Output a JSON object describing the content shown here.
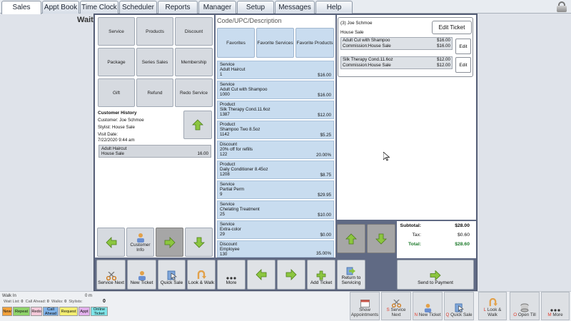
{
  "tabs": [
    {
      "label": "Sales",
      "active": true
    },
    {
      "label": "Appt Book"
    },
    {
      "label": "Time Clock"
    },
    {
      "label": "Scheduler"
    },
    {
      "label": "Reports"
    },
    {
      "label": "Manager"
    },
    {
      "label": "Setup"
    },
    {
      "label": "Messages"
    },
    {
      "label": "Help"
    }
  ],
  "wait_title": "Wait",
  "categories": [
    "Service",
    "Products",
    "Discount",
    "Package",
    "Series Sales",
    "Membership",
    "Gift",
    "Refund",
    "Redo Service"
  ],
  "customer_history": {
    "title": "Customer History",
    "customer": "Customer: Joe Schmoe",
    "stylist": "Stylist: House Sale",
    "visit_label": "Visit Date:",
    "visit_date": "7/22/2020 9:44 am",
    "entry": {
      "name": "Adult Haircut",
      "stylist": "House Sale",
      "price": "16.00"
    }
  },
  "left_nav": {
    "customer_info": "Customer Info"
  },
  "search": {
    "placeholder": "Code/UPC/Description"
  },
  "favorites": [
    "Favorites",
    "Favorite Services",
    "Favorite Products"
  ],
  "items": [
    {
      "type": "Service",
      "name": "Adult Haircut",
      "code": "1",
      "price": "$16.00"
    },
    {
      "type": "Service",
      "name": "Adult Cut with Shampoo",
      "code": "1000",
      "price": "$16.00"
    },
    {
      "type": "Product",
      "name": "Silk Therapy Cond.11.6oz",
      "code": "1387",
      "price": "$12.00"
    },
    {
      "type": "Product",
      "name": "Shampoo Two 8.5oz",
      "code": "1142",
      "price": "$5.25"
    },
    {
      "type": "Discount",
      "name": "20% off for refills",
      "code": "122",
      "price": "20.00%"
    },
    {
      "type": "Product",
      "name": "Daily Conditioner 8.45oz",
      "code": "1208",
      "price": "$8.75"
    },
    {
      "type": "Service",
      "name": "Partial Perm",
      "code": "9",
      "price": "$29.95"
    },
    {
      "type": "Service",
      "name": "Chelating Treatment",
      "code": "25",
      "price": "$10.00"
    },
    {
      "type": "Service",
      "name": "Extra-color",
      "code": "29",
      "price": "$0.00"
    },
    {
      "type": "Discount",
      "name": "Employee",
      "code": "130",
      "price": "35.00%"
    }
  ],
  "ticket": {
    "title": "(3) Joe Schmoe",
    "stylist": "House Sale",
    "edit_label": "Edit Ticket",
    "edit_small": "Edit",
    "lines": [
      {
        "name": "Adult Cut with Shampoo",
        "price": "$16.00",
        "commission": "Commission:House Sale",
        "amount": "$16.00"
      },
      {
        "name": "Silk Therapy Cond.11.6oz",
        "price": "$12.00",
        "commission": "Commission:House Sale",
        "amount": "$12.00"
      }
    ]
  },
  "totals": {
    "subtotal_label": "Subtotal:",
    "subtotal": "$28.00",
    "tax_label": "Tax:",
    "tax": "$0.60",
    "total_label": "Total:",
    "total": "$28.60"
  },
  "actions": {
    "service_next": "Service Next",
    "new_ticket": "New Ticket",
    "quick_sale": "Quick Sale",
    "look_walk": "Look & Walk",
    "more": "More",
    "add_ticket": "Add Ticket",
    "return_servicing": "Return to Servicing",
    "send_payment": "Send to Payment"
  },
  "footer": {
    "walk_in": "Walk In",
    "wait_list_label": "Wait List:",
    "wait_list": "0",
    "call_ahead_label": "Call Ahead:",
    "call_ahead": "0",
    "walks_label": "Walks:",
    "walks": "0",
    "stylists_label": "Stylists:",
    "minutes": "0 m",
    "count": "0",
    "chips": [
      "New",
      "Repeat",
      "Redo",
      "Call Ahead",
      "Request",
      "Appt",
      "Online Ticket"
    ],
    "buttons": [
      {
        "hot": "",
        "label": "Show Appointments"
      },
      {
        "hot": "S",
        "label": "Service Next"
      },
      {
        "hot": "N",
        "label": "New Ticket"
      },
      {
        "hot": "Q",
        "label": "Quick Sale"
      },
      {
        "hot": "L",
        "label": "Look & Walk"
      },
      {
        "hot": "O",
        "label": "Open Till"
      },
      {
        "hot": "M",
        "label": "More"
      }
    ]
  }
}
